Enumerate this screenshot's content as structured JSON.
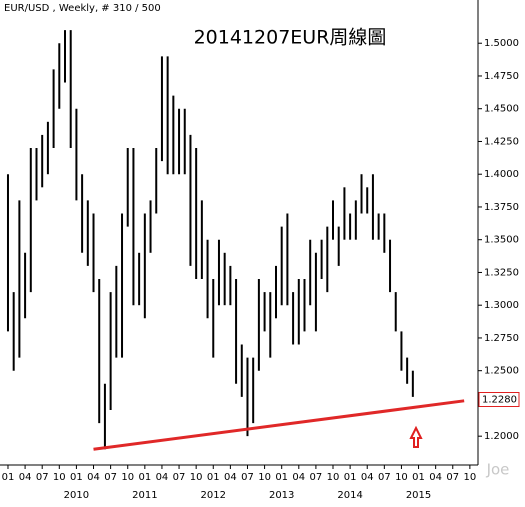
{
  "chart_data": {
    "type": "ohlc",
    "header": "EUR/USD , Weekly, # 310 / 500",
    "title": "20141207EUR周線圖",
    "watermark": "Joe",
    "x": [
      0,
      1,
      2,
      3,
      4,
      5,
      6,
      7,
      8,
      9,
      10,
      11,
      12,
      13,
      14,
      15,
      16,
      17,
      18,
      19,
      20,
      21,
      22,
      23,
      24,
      25,
      26,
      27,
      28,
      29,
      30,
      31,
      32,
      33,
      34,
      35,
      36,
      37,
      38,
      39,
      40,
      41,
      42,
      43,
      44,
      45,
      46,
      47,
      48,
      49,
      50,
      51,
      52,
      53,
      54,
      55,
      56,
      57,
      58,
      59,
      60,
      61,
      62,
      63,
      64,
      65,
      66,
      67,
      68,
      69,
      70,
      71
    ],
    "high": [
      1.4,
      1.31,
      1.38,
      1.34,
      1.42,
      1.42,
      1.43,
      1.44,
      1.48,
      1.5,
      1.51,
      1.51,
      1.45,
      1.4,
      1.38,
      1.37,
      1.32,
      1.24,
      1.31,
      1.33,
      1.37,
      1.42,
      1.42,
      1.34,
      1.37,
      1.38,
      1.42,
      1.49,
      1.49,
      1.46,
      1.45,
      1.45,
      1.43,
      1.42,
      1.38,
      1.35,
      1.32,
      1.35,
      1.34,
      1.33,
      1.32,
      1.27,
      1.26,
      1.26,
      1.32,
      1.31,
      1.31,
      1.33,
      1.36,
      1.37,
      1.31,
      1.32,
      1.32,
      1.35,
      1.34,
      1.35,
      1.36,
      1.38,
      1.36,
      1.39,
      1.37,
      1.38,
      1.4,
      1.39,
      1.4,
      1.37,
      1.37,
      1.35,
      1.31,
      1.28,
      1.26,
      1.25
    ],
    "low": [
      1.28,
      1.25,
      1.26,
      1.29,
      1.31,
      1.38,
      1.39,
      1.4,
      1.42,
      1.45,
      1.47,
      1.42,
      1.38,
      1.34,
      1.33,
      1.31,
      1.21,
      1.19,
      1.22,
      1.26,
      1.26,
      1.36,
      1.3,
      1.3,
      1.29,
      1.34,
      1.37,
      1.41,
      1.4,
      1.4,
      1.4,
      1.4,
      1.33,
      1.32,
      1.32,
      1.29,
      1.26,
      1.3,
      1.3,
      1.3,
      1.24,
      1.23,
      1.2,
      1.21,
      1.25,
      1.28,
      1.26,
      1.29,
      1.3,
      1.3,
      1.27,
      1.27,
      1.28,
      1.3,
      1.28,
      1.32,
      1.31,
      1.35,
      1.33,
      1.35,
      1.35,
      1.35,
      1.37,
      1.37,
      1.35,
      1.35,
      1.34,
      1.31,
      1.28,
      1.25,
      1.24,
      1.23
    ],
    "color": "#000000",
    "xlim": [
      -1.4,
      81.9
    ],
    "ylim": [
      1.178,
      1.533
    ],
    "xticks": [
      {
        "value": 0,
        "label": "01"
      },
      {
        "value": 3,
        "label": "04"
      },
      {
        "value": 6,
        "label": "07"
      },
      {
        "value": 9,
        "label": "10"
      },
      {
        "value": 12,
        "label": "01"
      },
      {
        "value": 15,
        "label": "04"
      },
      {
        "value": 18,
        "label": "07"
      },
      {
        "value": 21,
        "label": "10"
      },
      {
        "value": 24,
        "label": "01"
      },
      {
        "value": 27,
        "label": "04"
      },
      {
        "value": 30,
        "label": "07"
      },
      {
        "value": 33,
        "label": "10"
      },
      {
        "value": 36,
        "label": "01"
      },
      {
        "value": 39,
        "label": "04"
      },
      {
        "value": 42,
        "label": "07"
      },
      {
        "value": 45,
        "label": "10"
      },
      {
        "value": 48,
        "label": "01"
      },
      {
        "value": 51,
        "label": "04"
      },
      {
        "value": 54,
        "label": "07"
      },
      {
        "value": 57,
        "label": "10"
      },
      {
        "value": 60,
        "label": "01"
      },
      {
        "value": 63,
        "label": "04"
      },
      {
        "value": 66,
        "label": "07"
      },
      {
        "value": 69,
        "label": "10"
      },
      {
        "value": 72,
        "label": "01"
      },
      {
        "value": 75,
        "label": "04"
      },
      {
        "value": 78,
        "label": "07"
      },
      {
        "value": 81,
        "label": "10"
      }
    ],
    "year_ticks": [
      {
        "value": 12,
        "label": "2010"
      },
      {
        "value": 24,
        "label": "2011"
      },
      {
        "value": 36,
        "label": "2012"
      },
      {
        "value": 48,
        "label": "2013"
      },
      {
        "value": 60,
        "label": "2014"
      },
      {
        "value": 72,
        "label": "2015"
      }
    ],
    "yticks": [
      {
        "value": 1.2,
        "label": "1.2000"
      },
      {
        "value": 1.225,
        "label": "1.2250"
      },
      {
        "value": 1.25,
        "label": "1.2500"
      },
      {
        "value": 1.275,
        "label": "1.2750"
      },
      {
        "value": 1.3,
        "label": "1.3000"
      },
      {
        "value": 1.325,
        "label": "1.3250"
      },
      {
        "value": 1.35,
        "label": "1.3500"
      },
      {
        "value": 1.375,
        "label": "1.3750"
      },
      {
        "value": 1.4,
        "label": "1.4000"
      },
      {
        "value": 1.425,
        "label": "1.4250"
      },
      {
        "value": 1.45,
        "label": "1.4500"
      },
      {
        "value": 1.475,
        "label": "1.4750"
      },
      {
        "value": 1.5,
        "label": "1.5000"
      }
    ],
    "current_price": {
      "value": 1.228,
      "label": "1.2280",
      "color": "#e02020"
    },
    "trend_line": {
      "x": [
        15,
        80
      ],
      "y": [
        1.19,
        1.227
      ],
      "color": "#e02828"
    }
  }
}
